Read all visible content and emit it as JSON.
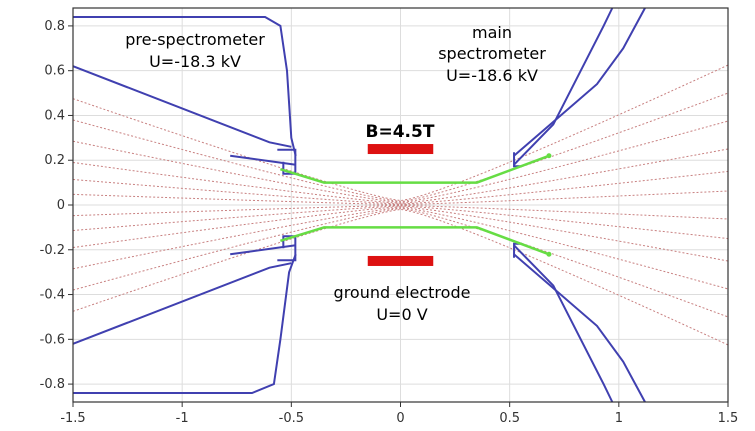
{
  "chart_data": {
    "type": "diagram",
    "xlim": [
      -1.5,
      1.5
    ],
    "ylim": [
      -0.88,
      0.88
    ],
    "x_ticks": [
      "-1.5",
      "-1",
      "-0.5",
      "0",
      "0.5",
      "1",
      "1.5"
    ],
    "y_ticks": [
      "0.8",
      "0.6",
      "0.4",
      "0.2",
      "0",
      "-0.2",
      "-0.4",
      "-0.6",
      "-0.8"
    ],
    "grid": true,
    "annotations": {
      "pre_spec_name": "pre-spectrometer",
      "pre_spec_voltage": "U=-18.3 kV",
      "main_spec_line1": "main",
      "main_spec_line2": "spectrometer",
      "main_spec_voltage": "U=-18.6 kV",
      "field": "B=4.5T",
      "ground_name": "ground electrode",
      "ground_voltage": "U=0 V"
    },
    "colors": {
      "electrode": "#4040b0",
      "beam": "#66dd44",
      "field_lines": "#c88080",
      "magnet": "#dd1111",
      "grid": "#dddddd",
      "frame": "#333333"
    },
    "electrodes": [
      [
        [
          -1.5,
          0.84
        ],
        [
          -0.62,
          0.84
        ],
        [
          -0.55,
          0.8
        ],
        [
          -0.52,
          0.6
        ],
        [
          -0.5,
          0.3
        ],
        [
          -0.48,
          0.22
        ]
      ],
      [
        [
          -1.5,
          0.62
        ],
        [
          -0.6,
          0.28
        ],
        [
          -0.5,
          0.26
        ]
      ],
      [
        [
          -0.78,
          0.22
        ],
        [
          -0.48,
          0.18
        ]
      ],
      [
        [
          -1.5,
          -0.62
        ],
        [
          -0.6,
          -0.28
        ],
        [
          -0.5,
          -0.26
        ]
      ],
      [
        [
          -0.78,
          -0.22
        ],
        [
          -0.48,
          -0.18
        ]
      ],
      [
        [
          -1.5,
          -0.84
        ],
        [
          -0.68,
          -0.84
        ],
        [
          -0.58,
          -0.8
        ],
        [
          -0.55,
          -0.6
        ],
        [
          -0.51,
          -0.3
        ],
        [
          -0.48,
          -0.22
        ]
      ],
      [
        [
          0.52,
          0.18
        ],
        [
          0.7,
          0.36
        ],
        [
          0.93,
          0.8
        ],
        [
          0.97,
          0.88
        ]
      ],
      [
        [
          0.52,
          0.22
        ],
        [
          0.9,
          0.54
        ],
        [
          1.02,
          0.7
        ],
        [
          1.12,
          0.88
        ]
      ],
      [
        [
          0.52,
          -0.18
        ],
        [
          0.7,
          -0.36
        ],
        [
          0.93,
          -0.8
        ],
        [
          0.97,
          -0.88
        ]
      ],
      [
        [
          0.52,
          -0.22
        ],
        [
          0.9,
          -0.54
        ],
        [
          1.02,
          -0.7
        ],
        [
          1.12,
          -0.88
        ]
      ]
    ],
    "beam_lines": [
      [
        [
          -0.55,
          0.16
        ],
        [
          -0.35,
          0.1
        ],
        [
          0.35,
          0.1
        ],
        [
          0.68,
          0.22
        ]
      ],
      [
        [
          -0.55,
          -0.16
        ],
        [
          -0.35,
          -0.1
        ],
        [
          0.35,
          -0.1
        ],
        [
          0.68,
          -0.22
        ]
      ]
    ],
    "field_line_edges": [
      0.5,
      0.4,
      0.3,
      0.2,
      0.12,
      0.05,
      -0.05,
      -0.12,
      -0.2,
      -0.3,
      -0.4,
      -0.5
    ],
    "magnets": [
      {
        "x": [
          -0.15,
          0.15
        ],
        "y": 0.25
      },
      {
        "x": [
          -0.15,
          0.15
        ],
        "y": -0.25
      }
    ]
  }
}
